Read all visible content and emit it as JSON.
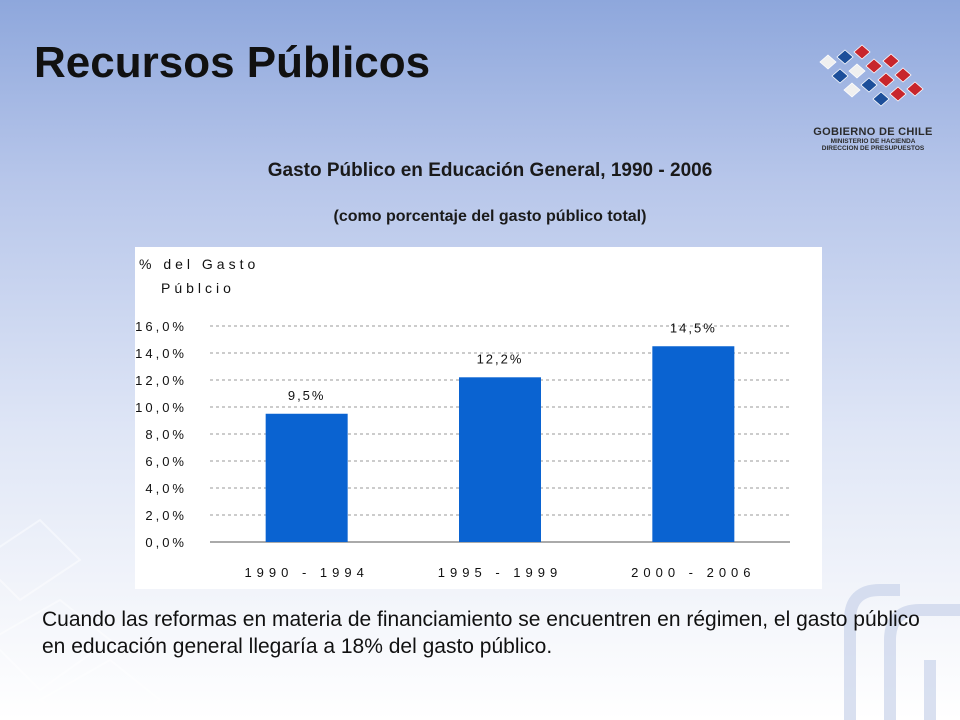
{
  "slide": {
    "title": "Recursos Públicos",
    "body_text": "Cuando las reformas en materia de financiamiento se encuentren en régimen, el gasto público en educación general llegaría a 18% del gasto público."
  },
  "logo": {
    "line1": "GOBIERNO DE CHILE",
    "line2": "MINISTERIO DE HACIENDA",
    "line3": "DIRECCION DE PRESUPUESTOS",
    "colors": {
      "red": "#c8262c",
      "blue": "#1d4f9a",
      "white": "#f0f0f0"
    }
  },
  "chart_data": {
    "type": "bar",
    "title": "Gasto Público en Educación General, 1990 - 2006",
    "subtitle": "(como porcentaje del gasto público total)",
    "ylabel_line1": "% del Gasto",
    "ylabel_line2": "Públcio",
    "categories": [
      "1990 - 1994",
      "1995 - 1999",
      "2000 - 2006"
    ],
    "values": [
      9.5,
      12.2,
      14.5
    ],
    "value_labels": [
      "9,5%",
      "12,2%",
      "14,5%"
    ],
    "ylim": [
      0,
      16
    ],
    "yticks": [
      0,
      2,
      4,
      6,
      8,
      10,
      12,
      14,
      16
    ],
    "ytick_labels": [
      "0,0%",
      "2,0%",
      "4,0%",
      "6,0%",
      "8,0%",
      "10,0%",
      "12,0%",
      "14,0%",
      "16,0%"
    ],
    "grid": true,
    "bar_color": "#0a63d1"
  }
}
